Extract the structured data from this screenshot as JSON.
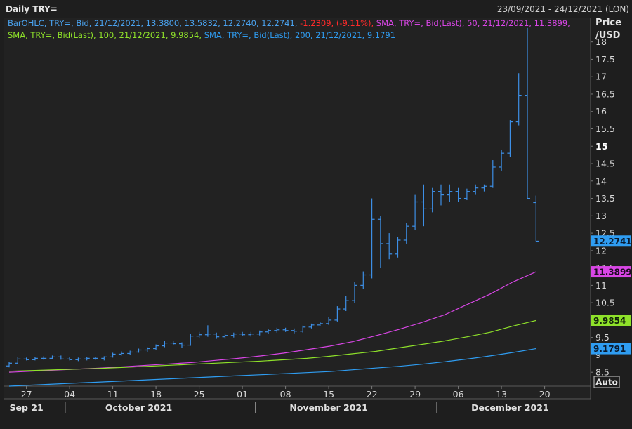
{
  "header": {
    "title": "Daily TRY=",
    "date_range": "23/09/2021 - 24/12/2021 (LON)"
  },
  "legend": {
    "line1": [
      {
        "text": "BarOHLC, TRY=, Bid, 21/12/2021, 13.3800, 13.5832, 12.2740, 12.2741, ",
        "color": "#4aa3f0"
      },
      {
        "text": "-1.2309, (-9.11%), ",
        "color": "#ff2a2a"
      },
      {
        "text": "SMA, TRY=, Bid(Last),  50, 21/12/2021, 11.3899, ",
        "color": "#d946e6"
      }
    ],
    "line2": [
      {
        "text": "SMA, TRY=, Bid(Last),  100, 21/12/2021, 9.9854, ",
        "color": "#8fe22a"
      },
      {
        "text": "SMA, TRY=, Bid(Last),  200, 21/12/2021, 9.1791",
        "color": "#2f9df2"
      }
    ]
  },
  "axis": {
    "title_line1": "Price",
    "title_line2": "/USD",
    "auto_label": "Auto"
  },
  "chart_data": {
    "type": "line",
    "title": "Daily TRY=",
    "ylabel": "Price /USD",
    "ylim": [
      8.1,
      18.7
    ],
    "y_ticks": [
      "8.5",
      "9",
      "9.5",
      "10",
      "10.5",
      "11",
      "11.5",
      "12",
      "12.5",
      "13",
      "13.5",
      "14",
      "14.5",
      "15",
      "15.5",
      "16",
      "16.5",
      "17",
      "17.5",
      "18"
    ],
    "y_bold_tick": "15",
    "x_ticks": [
      "27",
      "04",
      "11",
      "18",
      "25",
      "01",
      "08",
      "15",
      "22",
      "29",
      "06",
      "13",
      "20"
    ],
    "x_tick_bar_index": [
      2,
      7,
      12,
      17,
      22,
      27,
      32,
      37,
      42,
      47,
      52,
      57,
      62
    ],
    "months": [
      {
        "label": "Sep 21",
        "bar_index": 2
      },
      {
        "label": "October 2021",
        "bar_index": 15
      },
      {
        "label": "November 2021",
        "bar_index": 37
      },
      {
        "label": "December 2021",
        "bar_index": 58
      }
    ],
    "month_separators_bar_index": [
      6.5,
      28.5,
      49.5
    ],
    "ohlc": [
      [
        8.68,
        8.8,
        8.64,
        8.76
      ],
      [
        8.76,
        8.94,
        8.74,
        8.88
      ],
      [
        8.88,
        8.92,
        8.84,
        8.86
      ],
      [
        8.86,
        8.94,
        8.84,
        8.9
      ],
      [
        8.9,
        8.96,
        8.86,
        8.9
      ],
      [
        8.9,
        8.98,
        8.88,
        8.94
      ],
      [
        8.94,
        8.98,
        8.86,
        8.88
      ],
      [
        8.88,
        8.94,
        8.84,
        8.86
      ],
      [
        8.86,
        8.92,
        8.82,
        8.88
      ],
      [
        8.88,
        8.94,
        8.84,
        8.9
      ],
      [
        8.9,
        8.94,
        8.86,
        8.9
      ],
      [
        8.9,
        8.96,
        8.84,
        8.94
      ],
      [
        8.94,
        9.06,
        8.92,
        9.02
      ],
      [
        9.02,
        9.1,
        8.98,
        9.04
      ],
      [
        9.04,
        9.12,
        9.0,
        9.08
      ],
      [
        9.08,
        9.18,
        9.06,
        9.14
      ],
      [
        9.14,
        9.22,
        9.08,
        9.18
      ],
      [
        9.18,
        9.3,
        9.14,
        9.26
      ],
      [
        9.26,
        9.4,
        9.22,
        9.34
      ],
      [
        9.34,
        9.4,
        9.28,
        9.32
      ],
      [
        9.32,
        9.36,
        9.2,
        9.28
      ],
      [
        9.28,
        9.6,
        9.26,
        9.54
      ],
      [
        9.54,
        9.66,
        9.48,
        9.58
      ],
      [
        9.58,
        9.85,
        9.52,
        9.6
      ],
      [
        9.6,
        9.64,
        9.46,
        9.52
      ],
      [
        9.52,
        9.62,
        9.46,
        9.56
      ],
      [
        9.56,
        9.64,
        9.5,
        9.6
      ],
      [
        9.6,
        9.66,
        9.54,
        9.58
      ],
      [
        9.58,
        9.66,
        9.52,
        9.6
      ],
      [
        9.6,
        9.7,
        9.56,
        9.66
      ],
      [
        9.66,
        9.74,
        9.6,
        9.7
      ],
      [
        9.7,
        9.78,
        9.64,
        9.72
      ],
      [
        9.72,
        9.78,
        9.66,
        9.7
      ],
      [
        9.7,
        9.76,
        9.62,
        9.68
      ],
      [
        9.68,
        9.84,
        9.64,
        9.8
      ],
      [
        9.8,
        9.9,
        9.76,
        9.86
      ],
      [
        9.86,
        9.94,
        9.82,
        9.9
      ],
      [
        9.9,
        10.08,
        9.86,
        10.0
      ],
      [
        10.0,
        10.4,
        9.96,
        10.32
      ],
      [
        10.32,
        10.7,
        10.26,
        10.56
      ],
      [
        10.56,
        11.1,
        10.5,
        11.0
      ],
      [
        11.0,
        11.4,
        10.9,
        11.3
      ],
      [
        11.3,
        13.5,
        11.2,
        12.9
      ],
      [
        12.9,
        13.0,
        11.5,
        12.2
      ],
      [
        12.2,
        12.5,
        11.75,
        11.9
      ],
      [
        11.9,
        12.4,
        11.8,
        12.3
      ],
      [
        12.3,
        12.8,
        12.2,
        12.7
      ],
      [
        12.7,
        13.6,
        12.6,
        13.4
      ],
      [
        13.4,
        13.9,
        12.7,
        13.2
      ],
      [
        13.2,
        13.8,
        13.1,
        13.7
      ],
      [
        13.7,
        13.9,
        13.3,
        13.6
      ],
      [
        13.6,
        13.9,
        13.4,
        13.7
      ],
      [
        13.7,
        13.8,
        13.4,
        13.5
      ],
      [
        13.5,
        13.78,
        13.45,
        13.7
      ],
      [
        13.7,
        13.9,
        13.6,
        13.8
      ],
      [
        13.8,
        13.9,
        13.7,
        13.85
      ],
      [
        13.85,
        14.6,
        13.8,
        14.4
      ],
      [
        14.4,
        14.9,
        14.3,
        14.8
      ],
      [
        14.8,
        15.75,
        14.7,
        15.7
      ],
      [
        15.7,
        17.1,
        15.6,
        16.45
      ],
      [
        16.45,
        18.4,
        13.5,
        13.5
      ],
      [
        13.38,
        13.58,
        12.27,
        12.27
      ]
    ],
    "series": [
      {
        "name": "SMA 50",
        "color": "#d946e6",
        "values": [
          8.5,
          8.53,
          8.56,
          8.59,
          8.62,
          8.66,
          8.7,
          8.74,
          8.78,
          8.84,
          8.9,
          8.97,
          9.05,
          9.15,
          9.25,
          9.38,
          9.55,
          9.73,
          9.93,
          10.15,
          10.45,
          10.75,
          11.1,
          11.39
        ]
      },
      {
        "name": "SMA 100",
        "color": "#8fe22a",
        "values": [
          8.53,
          8.55,
          8.57,
          8.59,
          8.61,
          8.64,
          8.67,
          8.7,
          8.73,
          8.76,
          8.79,
          8.82,
          8.86,
          8.9,
          8.96,
          9.03,
          9.1,
          9.2,
          9.3,
          9.4,
          9.52,
          9.65,
          9.83,
          9.99
        ]
      },
      {
        "name": "SMA 200",
        "color": "#2f9df2",
        "values": [
          8.1,
          8.13,
          8.16,
          8.19,
          8.22,
          8.25,
          8.28,
          8.31,
          8.34,
          8.37,
          8.4,
          8.43,
          8.46,
          8.49,
          8.52,
          8.57,
          8.62,
          8.67,
          8.73,
          8.8,
          8.88,
          8.97,
          9.07,
          9.18
        ]
      }
    ],
    "last_value_tags": [
      {
        "label": "12.2741",
        "value": 12.2741,
        "bg": "#2f9df2",
        "fg": "#0a1a2e"
      },
      {
        "label": "11.3899",
        "value": 11.3899,
        "bg": "#d946e6",
        "fg": "#1e0a22"
      },
      {
        "label": "9.9854",
        "value": 9.9854,
        "bg": "#8fe22a",
        "fg": "#10220a"
      },
      {
        "label": "9.1791",
        "value": 9.1791,
        "bg": "#2f9df2",
        "fg": "#0a1a2e"
      }
    ],
    "bar_color": "#3d8fe6"
  }
}
